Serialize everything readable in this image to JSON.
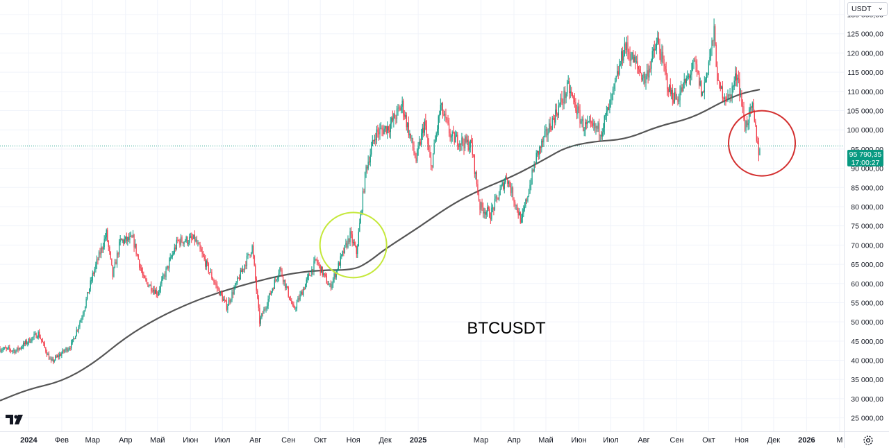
{
  "currency_selector": {
    "value": "USDT"
  },
  "watermark": {
    "text": "BTCUSDT"
  },
  "last_price": {
    "value": "95 790,35",
    "countdown": "17:00:27"
  },
  "colors": {
    "up": "#089981",
    "down": "#f23645",
    "ma": "#555555",
    "yellow_circle": "#c5e83b",
    "red_circle": "#d32f2f",
    "grid": "#f0f3fa",
    "price_line": "#089981"
  },
  "icons": {
    "logo": "tradingview-logo-icon",
    "settings": "gear-icon",
    "dropdown": "chevron-down-icon"
  },
  "chart_data": {
    "type": "candlestick",
    "symbol": "BTCUSDT",
    "y_axis": {
      "ticks": [
        "25 000,00",
        "30 000,00",
        "35 000,00",
        "40 000,00",
        "45 000,00",
        "50 000,00",
        "55 000,00",
        "60 000,00",
        "65 000,00",
        "70 000,00",
        "75 000,00",
        "80 000,00",
        "85 000,00",
        "90 000,00",
        "95 000,00",
        "100 000,00",
        "105 000,00",
        "110 000,00",
        "115 000,00",
        "120 000,00",
        "125 000,00",
        "130 000,00"
      ],
      "tick_values": [
        25000,
        30000,
        35000,
        40000,
        45000,
        50000,
        55000,
        60000,
        65000,
        70000,
        75000,
        80000,
        85000,
        90000,
        95000,
        100000,
        105000,
        110000,
        115000,
        120000,
        125000,
        130000
      ],
      "range": [
        21500,
        133800
      ]
    },
    "x_axis": {
      "range": [
        "2023-12-05",
        "2026-02-05"
      ],
      "ticks": [
        {
          "label": "2024",
          "date": "2024-01-01",
          "bold": true
        },
        {
          "label": "Фев",
          "date": "2024-02-01"
        },
        {
          "label": "Мар",
          "date": "2024-03-01"
        },
        {
          "label": "Апр",
          "date": "2024-04-01"
        },
        {
          "label": "Май",
          "date": "2024-05-01"
        },
        {
          "label": "Июн",
          "date": "2024-06-01"
        },
        {
          "label": "Июл",
          "date": "2024-07-01"
        },
        {
          "label": "Авг",
          "date": "2024-08-01"
        },
        {
          "label": "Сен",
          "date": "2024-09-01"
        },
        {
          "label": "Окт",
          "date": "2024-10-01"
        },
        {
          "label": "Ноя",
          "date": "2024-11-01"
        },
        {
          "label": "Дек",
          "date": "2024-12-01"
        },
        {
          "label": "2025",
          "date": "2025-01-01",
          "bold": true
        },
        {
          "label": "Мар",
          "date": "2025-03-01"
        },
        {
          "label": "Апр",
          "date": "2025-04-01"
        },
        {
          "label": "Май",
          "date": "2025-05-01"
        },
        {
          "label": "Июн",
          "date": "2025-06-01"
        },
        {
          "label": "Июл",
          "date": "2025-07-01"
        },
        {
          "label": "Авг",
          "date": "2025-08-01"
        },
        {
          "label": "Сен",
          "date": "2025-09-01"
        },
        {
          "label": "Окт",
          "date": "2025-10-01"
        },
        {
          "label": "Ноя",
          "date": "2025-11-01"
        },
        {
          "label": "Дек",
          "date": "2025-12-01"
        },
        {
          "label": "2026",
          "date": "2026-01-01",
          "bold": true
        },
        {
          "label": "М",
          "date": "2026-02-01"
        }
      ]
    },
    "price_path": [
      [
        "2023-12-05",
        43000
      ],
      [
        "2023-12-20",
        42500
      ],
      [
        "2024-01-10",
        47000
      ],
      [
        "2024-01-22",
        39500
      ],
      [
        "2024-02-10",
        44000
      ],
      [
        "2024-02-20",
        51500
      ],
      [
        "2024-03-01",
        62000
      ],
      [
        "2024-03-14",
        73000
      ],
      [
        "2024-03-20",
        62000
      ],
      [
        "2024-03-27",
        71000
      ],
      [
        "2024-04-08",
        71500
      ],
      [
        "2024-04-18",
        61000
      ],
      [
        "2024-05-01",
        57500
      ],
      [
        "2024-05-20",
        71000
      ],
      [
        "2024-06-05",
        71500
      ],
      [
        "2024-06-24",
        60000
      ],
      [
        "2024-07-05",
        54000
      ],
      [
        "2024-07-29",
        69500
      ],
      [
        "2024-08-05",
        50000
      ],
      [
        "2024-08-24",
        64000
      ],
      [
        "2024-09-06",
        53000
      ],
      [
        "2024-09-27",
        66000
      ],
      [
        "2024-10-10",
        59000
      ],
      [
        "2024-10-29",
        72500
      ],
      [
        "2024-11-04",
        68000
      ],
      [
        "2024-11-13",
        90000
      ],
      [
        "2024-11-22",
        99000
      ],
      [
        "2024-12-05",
        101000
      ],
      [
        "2024-12-17",
        106500
      ],
      [
        "2024-12-30",
        92000
      ],
      [
        "2025-01-07",
        102000
      ],
      [
        "2025-01-13",
        90000
      ],
      [
        "2025-01-22",
        106000
      ],
      [
        "2025-02-01",
        98000
      ],
      [
        "2025-02-20",
        96000
      ],
      [
        "2025-02-28",
        80000
      ],
      [
        "2025-03-10",
        78000
      ],
      [
        "2025-03-25",
        88000
      ],
      [
        "2025-04-08",
        76000
      ],
      [
        "2025-04-22",
        93000
      ],
      [
        "2025-05-08",
        103000
      ],
      [
        "2025-05-22",
        111000
      ],
      [
        "2025-06-05",
        101000
      ],
      [
        "2025-06-22",
        100000
      ],
      [
        "2025-07-01",
        107000
      ],
      [
        "2025-07-14",
        122000
      ],
      [
        "2025-08-02",
        113000
      ],
      [
        "2025-08-14",
        123000
      ],
      [
        "2025-08-25",
        110000
      ],
      [
        "2025-09-01",
        108000
      ],
      [
        "2025-09-18",
        117000
      ],
      [
        "2025-09-25",
        109000
      ],
      [
        "2025-10-06",
        125000
      ],
      [
        "2025-10-10",
        111000
      ],
      [
        "2025-10-20",
        108000
      ],
      [
        "2025-10-28",
        115000
      ],
      [
        "2025-11-04",
        101000
      ],
      [
        "2025-11-11",
        105500
      ],
      [
        "2025-11-17",
        94500
      ],
      [
        "2025-11-18",
        95790
      ]
    ],
    "moving_average": [
      [
        "2023-12-05",
        29500
      ],
      [
        "2024-01-01",
        32500
      ],
      [
        "2024-02-01",
        34500
      ],
      [
        "2024-03-01",
        39000
      ],
      [
        "2024-04-01",
        46000
      ],
      [
        "2024-05-01",
        51000
      ],
      [
        "2024-06-01",
        55000
      ],
      [
        "2024-07-01",
        58000
      ],
      [
        "2024-08-01",
        60500
      ],
      [
        "2024-09-01",
        62500
      ],
      [
        "2024-10-01",
        63500
      ],
      [
        "2024-11-01",
        63500
      ],
      [
        "2024-11-15",
        65500
      ],
      [
        "2024-12-01",
        69000
      ],
      [
        "2025-01-01",
        74500
      ],
      [
        "2025-02-01",
        80500
      ],
      [
        "2025-03-01",
        84500
      ],
      [
        "2025-04-01",
        88000
      ],
      [
        "2025-05-01",
        92500
      ],
      [
        "2025-05-20",
        95500
      ],
      [
        "2025-06-15",
        97000
      ],
      [
        "2025-07-15",
        97500
      ],
      [
        "2025-08-15",
        101000
      ],
      [
        "2025-09-15",
        103000
      ],
      [
        "2025-10-15",
        107500
      ],
      [
        "2025-11-01",
        109500
      ],
      [
        "2025-11-18",
        110500
      ]
    ],
    "last_price": 95790.35,
    "highlights": [
      {
        "type": "circle",
        "color": "yellow",
        "center_date": "2024-11-01",
        "center_price": 70000
      },
      {
        "type": "circle",
        "color": "red",
        "center_date": "2025-11-20",
        "center_price": 96500
      }
    ]
  }
}
